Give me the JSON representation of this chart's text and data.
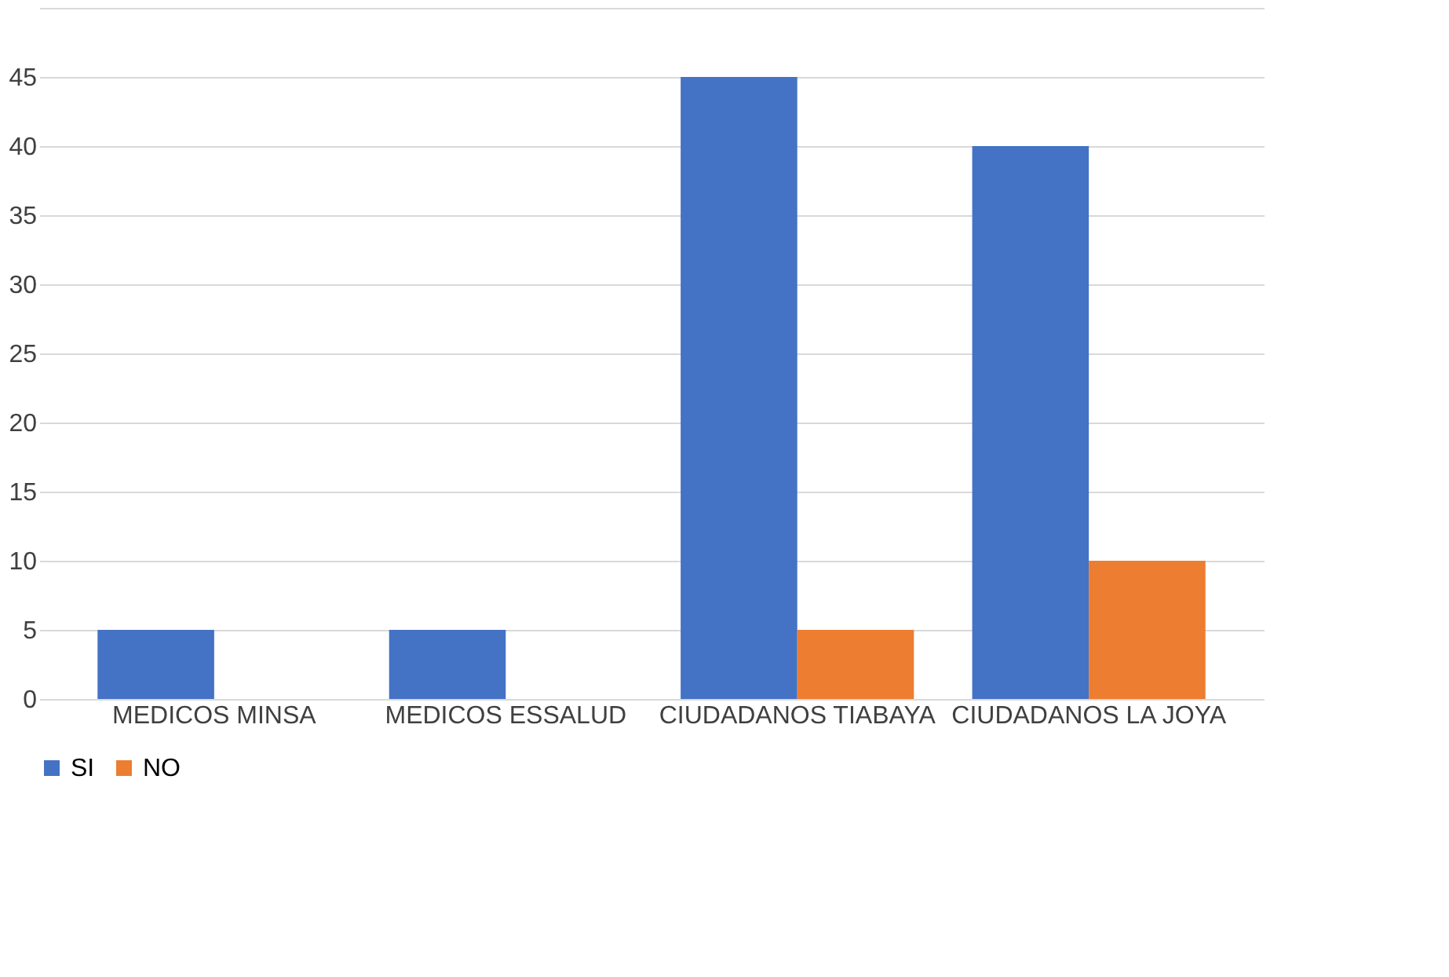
{
  "chart_data": {
    "type": "bar",
    "categories": [
      "MEDICOS MINSA",
      "MEDICOS ESSALUD",
      "CIUDADANOS TIABAYA",
      "CIUDADANOS LA JOYA"
    ],
    "series": [
      {
        "name": "SI",
        "color": "#4472c4",
        "values": [
          5,
          5,
          45,
          40
        ]
      },
      {
        "name": "NO",
        "color": "#ed7d31",
        "values": [
          0,
          0,
          5,
          10
        ]
      }
    ],
    "ylim": [
      0,
      50
    ],
    "yticks": [
      0,
      5,
      10,
      15,
      20,
      25,
      30,
      35,
      40,
      45,
      {
        "value": 50,
        "label": null
      }
    ],
    "grid": "y",
    "legend": "bottom"
  }
}
